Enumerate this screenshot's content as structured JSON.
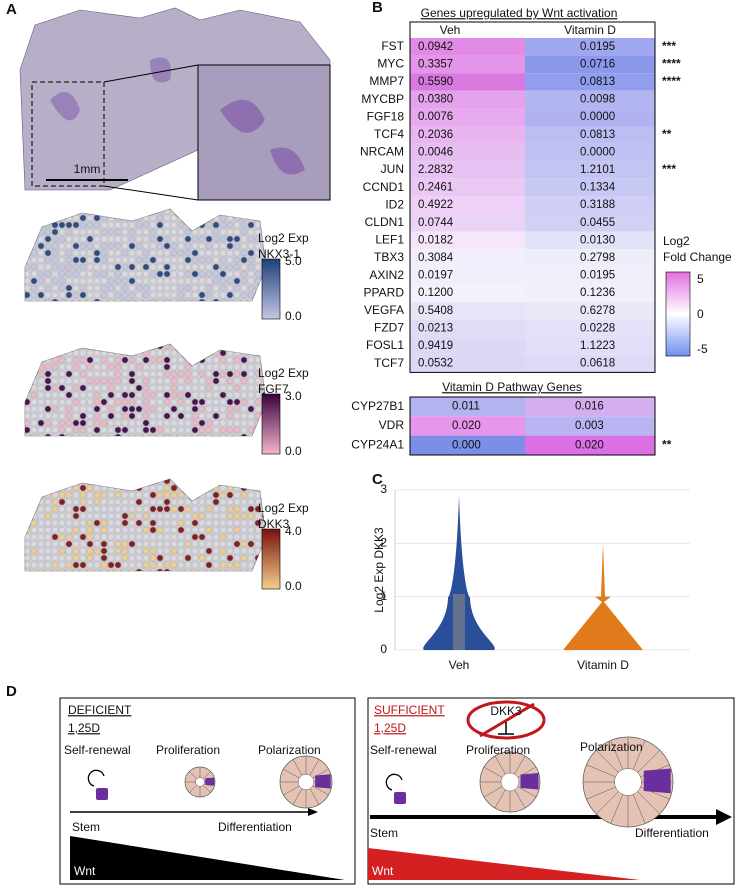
{
  "panels": {
    "a": "A",
    "b": "B",
    "c": "C",
    "d": "D"
  },
  "panel_a": {
    "scale_bar": "1mm",
    "maps": [
      {
        "title": "Log2 Exp",
        "gene": "NKX3-1",
        "max": "5.0",
        "min": "0.0",
        "colors": [
          "#c3c7e3",
          "#1f3f7a"
        ]
      },
      {
        "title": "Log2 Exp",
        "gene": "FGF7",
        "max": "3.0",
        "min": "0.0",
        "colors": [
          "#f2b6c6",
          "#3a0240"
        ]
      },
      {
        "title": "Log2 Exp",
        "gene": "DKK3",
        "max": "4.0",
        "min": "0.0",
        "colors": [
          "#f2d08a",
          "#7a0f0f"
        ]
      }
    ]
  },
  "panel_b": {
    "title": "Genes upregulated by Wnt activation",
    "columns": [
      "Veh",
      "Vitamin D"
    ],
    "rows": [
      {
        "gene": "FST",
        "veh": "0.0942",
        "vitamin_d": "0.0195",
        "sig": "***",
        "colors": [
          "#e28be6",
          "#9fa8ef"
        ]
      },
      {
        "gene": "MYC",
        "veh": "0.3357",
        "vitamin_d": "0.0716",
        "sig": "****",
        "colors": [
          "#e495e9",
          "#8c98ec"
        ]
      },
      {
        "gene": "MMP7",
        "veh": "0.5590",
        "vitamin_d": "0.0813",
        "sig": "****",
        "colors": [
          "#d979e0",
          "#929dee"
        ]
      },
      {
        "gene": "MYCBP",
        "veh": "0.0380",
        "vitamin_d": "0.0098",
        "colors": [
          "#e4a2ec",
          "#b3b5f1"
        ]
      },
      {
        "gene": "FGF18",
        "veh": "0.0076",
        "vitamin_d": "0.0000",
        "colors": [
          "#e6a9ee",
          "#b0b2f1"
        ]
      },
      {
        "gene": "TCF4",
        "veh": "0.2036",
        "vitamin_d": "0.0813",
        "sig": "**",
        "colors": [
          "#e8b5f0",
          "#bcbdf3"
        ]
      },
      {
        "gene": "NRCAM",
        "veh": "0.0046",
        "vitamin_d": "0.0000",
        "colors": [
          "#e5bdf0",
          "#c0c1f3"
        ]
      },
      {
        "gene": "JUN",
        "veh": "2.2832",
        "vitamin_d": "1.2101",
        "sig": "***",
        "colors": [
          "#e6c3f2",
          "#c4c4f4"
        ]
      },
      {
        "gene": "CCND1",
        "veh": "0.2461",
        "vitamin_d": "0.1334",
        "colors": [
          "#e9c9f4",
          "#c8c8f5"
        ]
      },
      {
        "gene": "ID2",
        "veh": "0.4922",
        "vitamin_d": "0.3188",
        "colors": [
          "#efd0f6",
          "#cfcff6"
        ]
      },
      {
        "gene": "CLDN1",
        "veh": "0.0744",
        "vitamin_d": "0.0455",
        "colors": [
          "#ead3f6",
          "#d1d1f6"
        ]
      },
      {
        "gene": "LEF1",
        "veh": "0.0182",
        "vitamin_d": "0.0130",
        "colors": [
          "#f6e6fa",
          "#e2e2f8"
        ]
      },
      {
        "gene": "TBX3",
        "veh": "0.3084",
        "vitamin_d": "0.2798",
        "colors": [
          "#f3eefb",
          "#eeeefb"
        ]
      },
      {
        "gene": "AXIN2",
        "veh": "0.0197",
        "vitamin_d": "0.0195",
        "colors": [
          "#f2eefb",
          "#efeefb"
        ]
      },
      {
        "gene": "PPARD",
        "veh": "0.1200",
        "vitamin_d": "0.1236",
        "colors": [
          "#f5f1fb",
          "#f2effb"
        ]
      },
      {
        "gene": "VEGFA",
        "veh": "0.5408",
        "vitamin_d": "0.6278",
        "colors": [
          "#e9e3f8",
          "#ebe6f8"
        ]
      },
      {
        "gene": "FZD7",
        "veh": "0.0213",
        "vitamin_d": "0.0228",
        "colors": [
          "#e1dcf6",
          "#e4e0f7"
        ]
      },
      {
        "gene": "FOSL1",
        "veh": "0.9419",
        "vitamin_d": "1.1223",
        "colors": [
          "#dcd8f6",
          "#e1def7"
        ]
      },
      {
        "gene": "TCF7",
        "veh": "0.0532",
        "vitamin_d": "0.0618",
        "colors": [
          "#dbd8f6",
          "#dcdaf6"
        ]
      }
    ],
    "legend": {
      "title": [
        "Log2",
        "Fold Change"
      ],
      "ticks": [
        "5",
        "0",
        "-5"
      ],
      "colors": [
        "#e26fe0",
        "#ffffff",
        "#6f8ff0"
      ]
    },
    "vd_title": "Vitamin D Pathway Genes",
    "vd_rows": [
      {
        "gene": "CYP27B1",
        "veh": "0.011",
        "vitamin_d": "0.016",
        "colors": [
          "#b3b3f0",
          "#d5aef0"
        ]
      },
      {
        "gene": "VDR",
        "veh": "0.020",
        "vitamin_d": "0.003",
        "colors": [
          "#e796ec",
          "#b8b5f2"
        ]
      },
      {
        "gene": "CYP24A1",
        "veh": "0.000",
        "vitamin_d": "0.020",
        "sig": "**",
        "colors": [
          "#7b8fe8",
          "#dd6fe5"
        ]
      }
    ]
  },
  "panel_c": {
    "ylabel": "Log2 Exp DKK3",
    "categories": [
      "Veh",
      "Vitamin D"
    ],
    "ylim": [
      0,
      3
    ],
    "yticks": [
      0,
      1,
      2,
      3
    ],
    "colors": [
      "#2a4f9a",
      "#e07a1a"
    ]
  },
  "panel_d": {
    "left": {
      "title": "DEFICIENT",
      "subtitle": "1,25D",
      "stages": [
        "Self-renewal",
        "Proliferation",
        "Polarization"
      ],
      "start": "Stem",
      "end": "Differentiation",
      "gradient": "Wnt"
    },
    "right": {
      "title": "SUFFICIENT",
      "subtitle": "1,25D",
      "inhibitor": "DKK3",
      "stages": [
        "Self-renewal",
        "Proliferation",
        "Polarization"
      ],
      "start": "Stem",
      "end": "Differentiation",
      "gradient": "Wnt"
    }
  }
}
